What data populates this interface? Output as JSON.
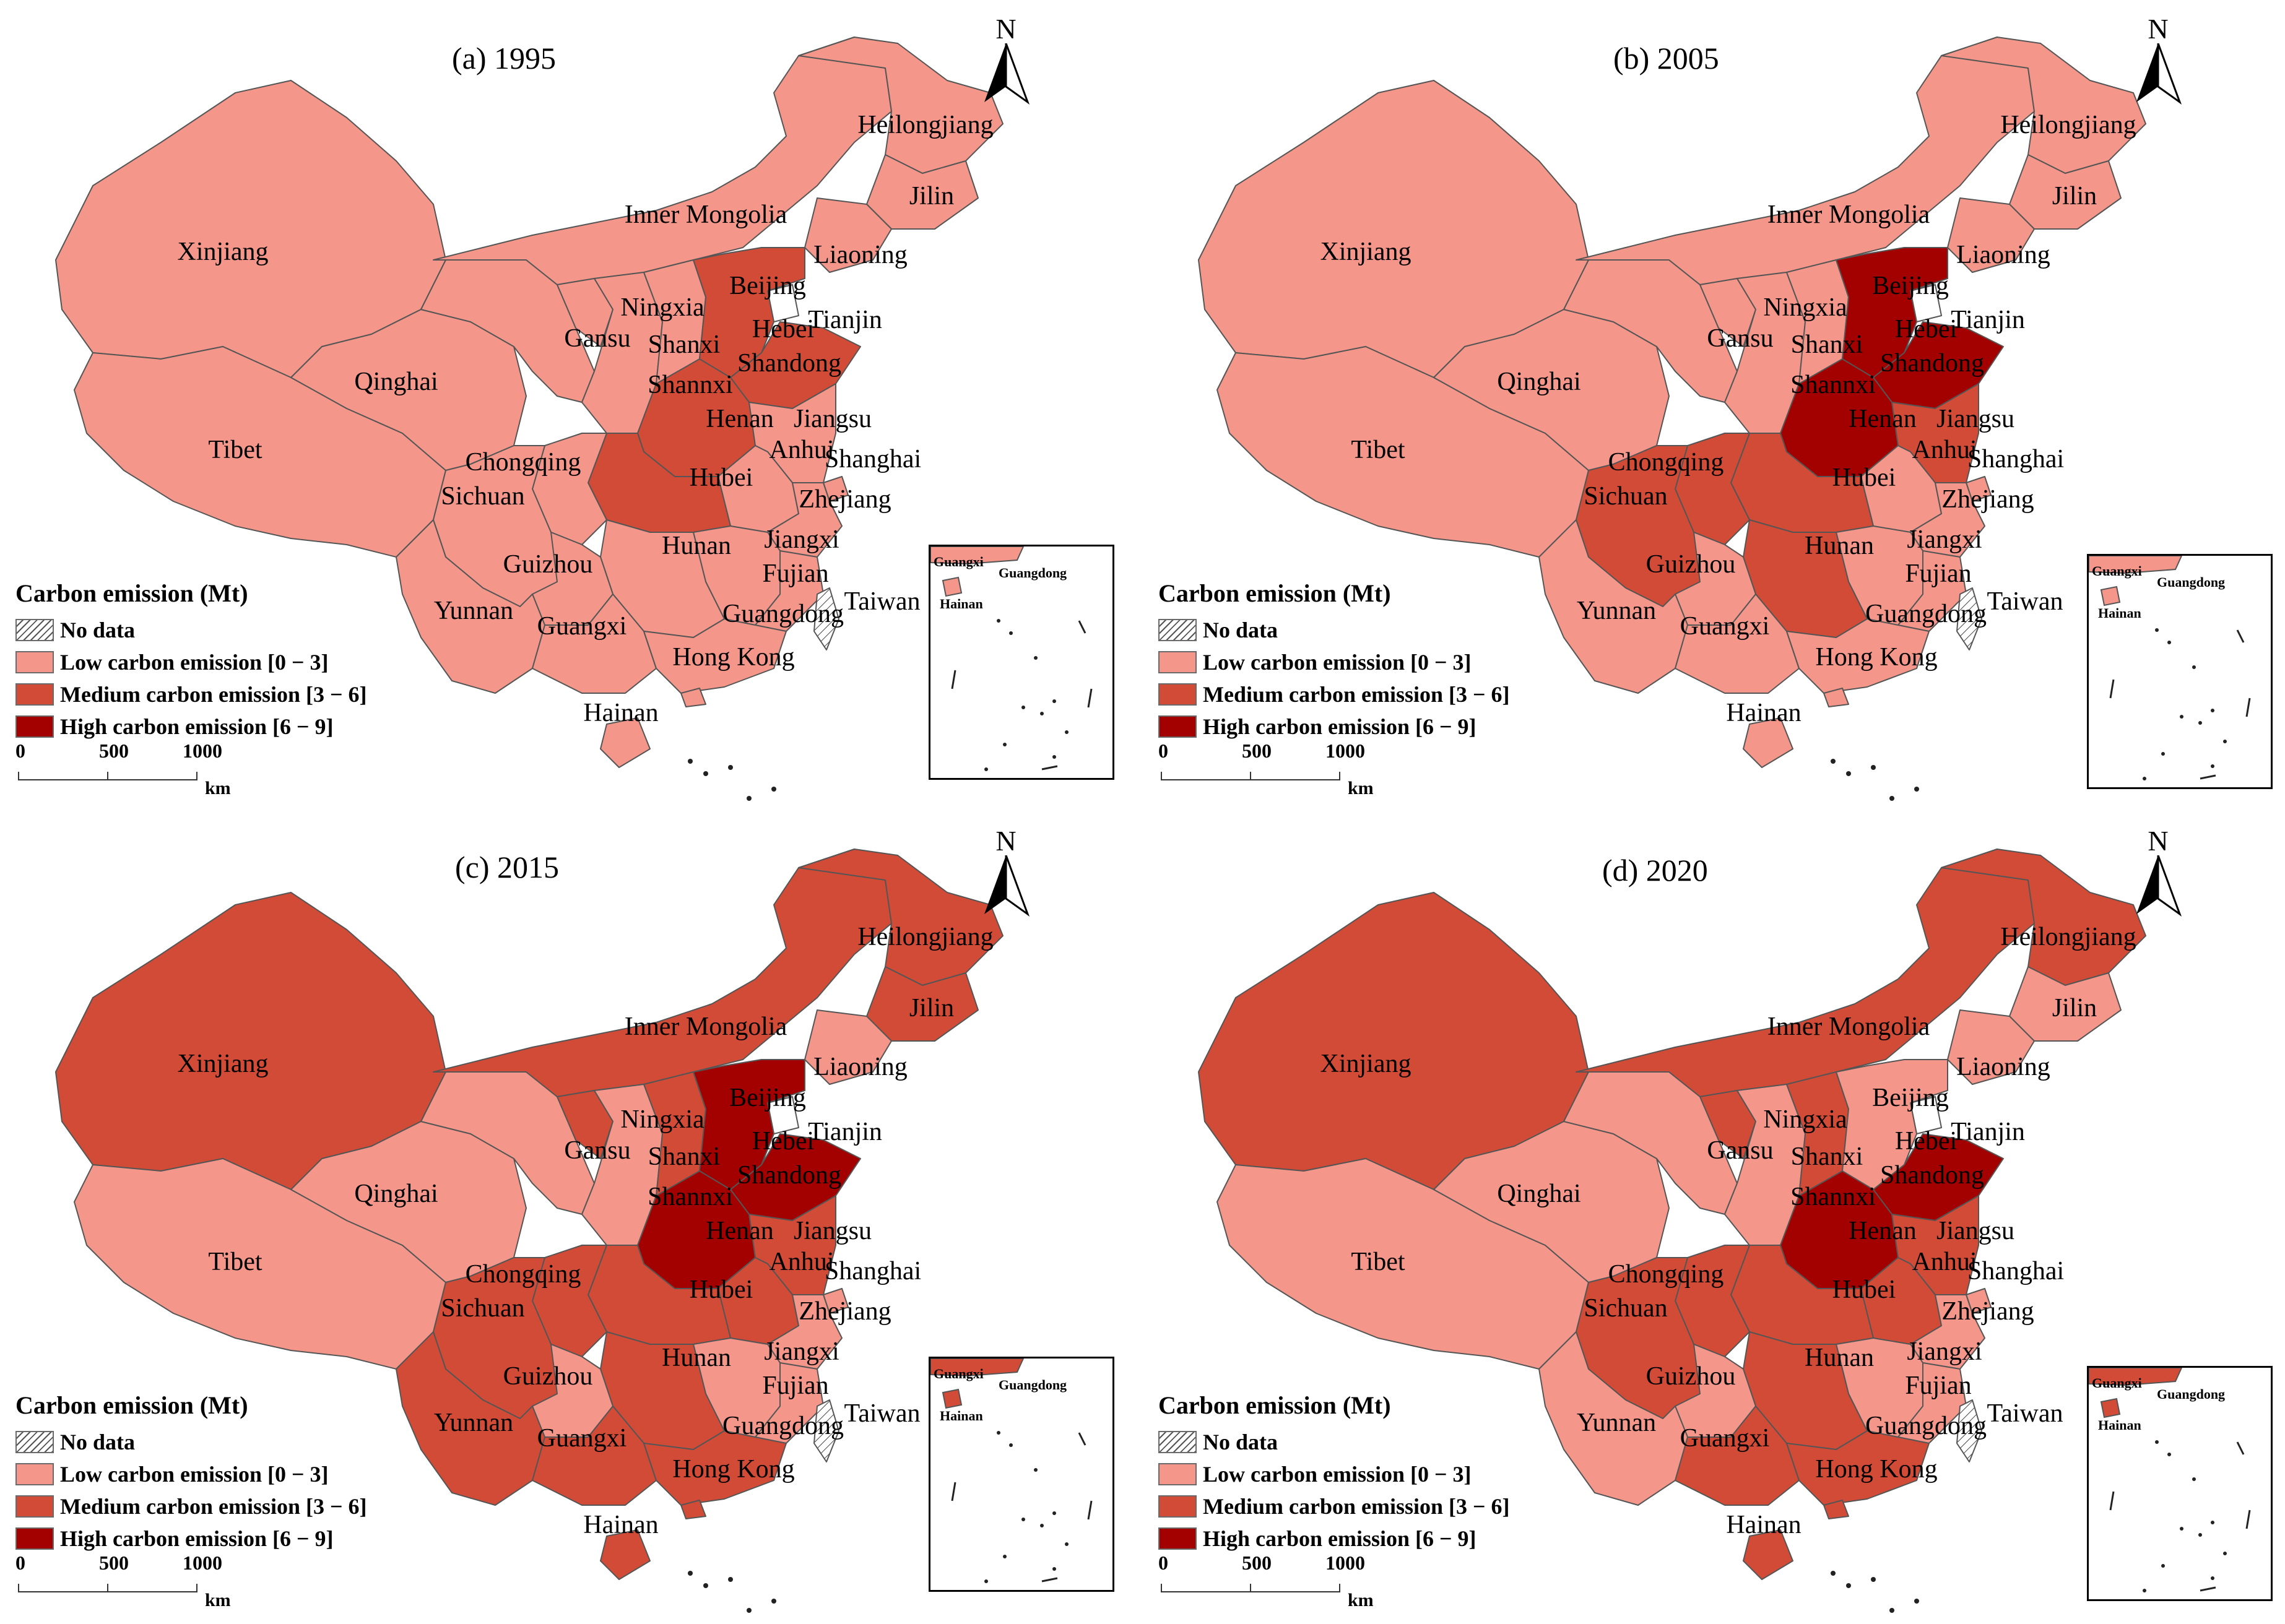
{
  "colors": {
    "low": "#f4978a",
    "medium": "#d24b37",
    "high": "#a30000",
    "nodata": "#ffffff",
    "border": "#555555"
  },
  "legend": {
    "title": "Carbon emission (Mt)",
    "items": [
      {
        "key": "nodata",
        "label": "No data"
      },
      {
        "key": "low",
        "label": "Low carbon emission [0 − 3]"
      },
      {
        "key": "medium",
        "label": "Medium carbon emission [3 − 6]"
      },
      {
        "key": "high",
        "label": "High carbon emission [6 − 9]"
      }
    ]
  },
  "scale": {
    "ticks": [
      "0",
      "500",
      "1000"
    ],
    "unit": "km"
  },
  "north_label": "N",
  "inset_labels": {
    "guangxi": "Guangxi",
    "guangdong": "Guangdong",
    "hainan": "Hainan"
  },
  "panels": [
    {
      "title": "(a) 1995",
      "classes": {
        "Heilongjiang": "low",
        "Jilin": "low",
        "Liaoning": "low",
        "Inner Mongolia": "low",
        "Beijing": "medium",
        "Tianjin": "nodata",
        "Hebei": "medium",
        "Shandong": "medium",
        "Shanxi": "low",
        "Ningxia": "low",
        "Gansu": "low",
        "Shannxi": "low",
        "Henan": "medium",
        "Jiangsu": "low",
        "Anhui": "low",
        "Shanghai": "low",
        "Hubei": "medium",
        "Chongqing": "low",
        "Sichuan": "low",
        "Zhejiang": "low",
        "Hunan": "low",
        "Jiangxi": "low",
        "Guizhou": "low",
        "Fujian": "low",
        "Yunnan": "low",
        "Guangxi": "low",
        "Guangdong": "low",
        "Hong Kong": "low",
        "Hainan": "low",
        "Taiwan": "nodata",
        "Xinjiang": "low",
        "Qinghai": "low",
        "Tibet": "low"
      }
    },
    {
      "title": "(b) 2005",
      "classes": {
        "Heilongjiang": "low",
        "Jilin": "low",
        "Liaoning": "low",
        "Inner Mongolia": "low",
        "Beijing": "high",
        "Tianjin": "nodata",
        "Hebei": "high",
        "Shandong": "high",
        "Shanxi": "low",
        "Ningxia": "low",
        "Gansu": "low",
        "Shannxi": "low",
        "Henan": "high",
        "Jiangsu": "medium",
        "Anhui": "low",
        "Shanghai": "low",
        "Hubei": "medium",
        "Chongqing": "medium",
        "Sichuan": "medium",
        "Zhejiang": "low",
        "Hunan": "medium",
        "Jiangxi": "low",
        "Guizhou": "low",
        "Fujian": "low",
        "Yunnan": "low",
        "Guangxi": "low",
        "Guangdong": "low",
        "Hong Kong": "low",
        "Hainan": "low",
        "Taiwan": "nodata",
        "Xinjiang": "low",
        "Qinghai": "low",
        "Tibet": "low"
      }
    },
    {
      "title": "(c) 2015",
      "classes": {
        "Heilongjiang": "medium",
        "Jilin": "medium",
        "Liaoning": "low",
        "Inner Mongolia": "medium",
        "Beijing": "high",
        "Tianjin": "nodata",
        "Hebei": "high",
        "Shandong": "high",
        "Shanxi": "medium",
        "Ningxia": "medium",
        "Gansu": "low",
        "Shannxi": "low",
        "Henan": "high",
        "Jiangsu": "medium",
        "Anhui": "medium",
        "Shanghai": "low",
        "Hubei": "medium",
        "Chongqing": "medium",
        "Sichuan": "medium",
        "Zhejiang": "low",
        "Hunan": "medium",
        "Jiangxi": "low",
        "Guizhou": "low",
        "Fujian": "low",
        "Yunnan": "medium",
        "Guangxi": "medium",
        "Guangdong": "medium",
        "Hong Kong": "medium",
        "Hainan": "medium",
        "Taiwan": "nodata",
        "Xinjiang": "medium",
        "Qinghai": "low",
        "Tibet": "low"
      }
    },
    {
      "title": "(d) 2020",
      "classes": {
        "Heilongjiang": "medium",
        "Jilin": "low",
        "Liaoning": "low",
        "Inner Mongolia": "medium",
        "Beijing": "low",
        "Tianjin": "nodata",
        "Hebei": "low",
        "Shandong": "high",
        "Shanxi": "medium",
        "Ningxia": "medium",
        "Gansu": "low",
        "Shannxi": "low",
        "Henan": "high",
        "Jiangsu": "medium",
        "Anhui": "medium",
        "Shanghai": "low",
        "Hubei": "medium",
        "Chongqing": "medium",
        "Sichuan": "medium",
        "Zhejiang": "low",
        "Hunan": "medium",
        "Jiangxi": "low",
        "Guizhou": "low",
        "Fujian": "low",
        "Yunnan": "low",
        "Guangxi": "medium",
        "Guangdong": "medium",
        "Hong Kong": "medium",
        "Hainan": "medium",
        "Taiwan": "nodata",
        "Xinjiang": "medium",
        "Qinghai": "low",
        "Tibet": "low"
      }
    }
  ]
}
